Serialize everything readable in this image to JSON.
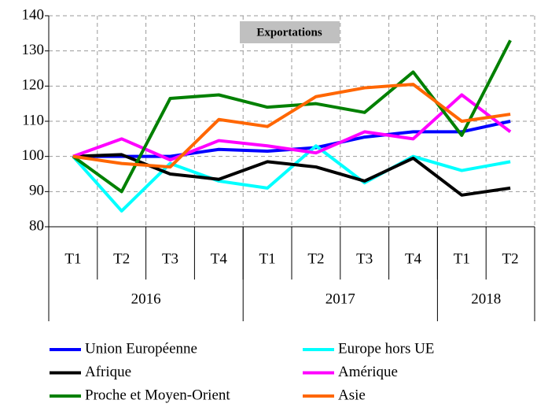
{
  "chart_data": {
    "type": "line",
    "title": "Exportations",
    "categories": [
      "T1",
      "T2",
      "T3",
      "T4",
      "T1",
      "T2",
      "T3",
      "T4",
      "T1",
      "T2"
    ],
    "year_groups": [
      {
        "label": "2016",
        "count": 4
      },
      {
        "label": "2017",
        "count": 4
      },
      {
        "label": "2018",
        "count": 2
      }
    ],
    "ylim": [
      80,
      140
    ],
    "yticks": [
      80,
      90,
      100,
      110,
      120,
      130,
      140
    ],
    "grid": true,
    "series": [
      {
        "name": "Union Européenne",
        "color": "#0000ff",
        "values": [
          100,
          100,
          100,
          102,
          101.5,
          102.5,
          105.5,
          107,
          107,
          110
        ]
      },
      {
        "name": "Europe hors UE",
        "color": "#00ffff",
        "values": [
          100,
          84.5,
          98,
          93,
          91,
          103,
          92.5,
          100,
          96,
          98.5
        ]
      },
      {
        "name": "Afrique",
        "color": "#000000",
        "values": [
          100,
          100.5,
          95,
          93.5,
          98.5,
          97,
          93,
          99.5,
          89,
          91
        ]
      },
      {
        "name": "Amérique",
        "color": "#ff00ff",
        "values": [
          100,
          105,
          99,
          104.5,
          103,
          101,
          107,
          105,
          117.5,
          107
        ]
      },
      {
        "name": "Proche et Moyen-Orient",
        "color": "#008000",
        "values": [
          100,
          90,
          116.5,
          117.5,
          114,
          115,
          112.5,
          124,
          106,
          133
        ]
      },
      {
        "name": "Asie",
        "color": "#ff6600",
        "values": [
          100,
          98,
          97,
          110.5,
          108.5,
          117,
          119.5,
          120.5,
          110,
          112
        ]
      }
    ]
  }
}
